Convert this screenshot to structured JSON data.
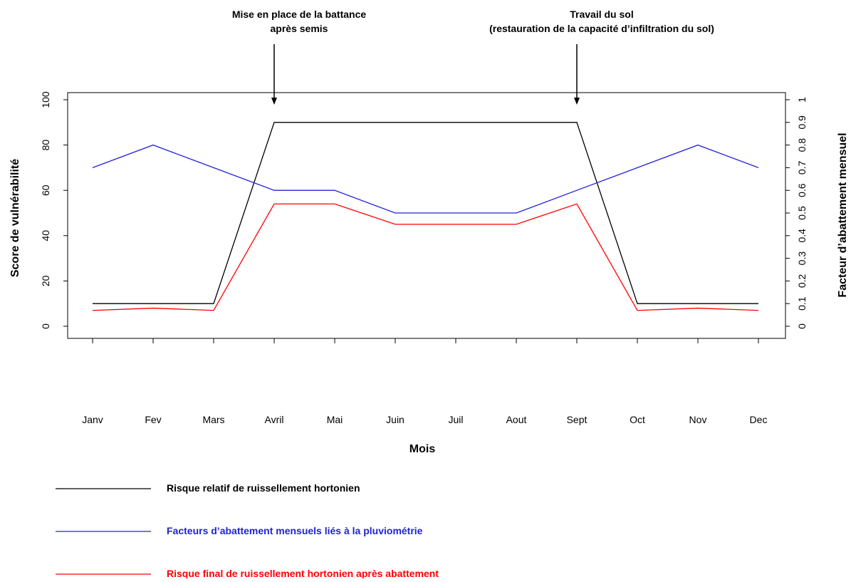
{
  "chart_data": {
    "type": "line",
    "xlabel": "Mois",
    "ylabel": "Score de vulnérabilité",
    "y2label": "Facteur d’abattement mensuel",
    "categories": [
      "Janv",
      "Fev",
      "Mars",
      "Avril",
      "Mai",
      "Juin",
      "Juil",
      "Aout",
      "Sept",
      "Oct",
      "Nov",
      "Dec"
    ],
    "ylim": [
      0,
      100
    ],
    "yticks": [
      0,
      20,
      40,
      60,
      80,
      100
    ],
    "y2lim": [
      0,
      1
    ],
    "y2ticks": [
      0,
      0.1,
      0.2,
      0.3,
      0.4,
      0.5,
      0.6,
      0.7,
      0.8,
      0.9,
      1
    ],
    "grid": false,
    "legend_position": "bottom-left",
    "series": [
      {
        "name": "Risque relatif de ruissellement hortonien",
        "axis": "left",
        "color": "#000000",
        "values": [
          10,
          10,
          10,
          90,
          90,
          90,
          90,
          90,
          90,
          10,
          10,
          10
        ]
      },
      {
        "name": "Facteurs d’abattement mensuels liés à la pluviométrie",
        "axis": "right",
        "color": "#2020e0",
        "values": [
          0.7,
          0.8,
          0.7,
          0.6,
          0.6,
          0.5,
          0.5,
          0.5,
          0.6,
          0.7,
          0.8,
          0.7
        ]
      },
      {
        "name": "Risque final de ruissellement hortonien après abattement",
        "axis": "left",
        "color": "#ff0000",
        "values": [
          7,
          8,
          7,
          54,
          54,
          45,
          45,
          45,
          54,
          7,
          8,
          7
        ]
      }
    ],
    "annotations": [
      {
        "lines": [
          "Mise en place de la battance",
          "après semis"
        ],
        "category": "Avril",
        "arrow_to": 100
      },
      {
        "lines": [
          "Travail du sol",
          "(restauration de la capacité d’infiltration du sol)"
        ],
        "category": "Sept",
        "arrow_to": 100
      }
    ]
  }
}
